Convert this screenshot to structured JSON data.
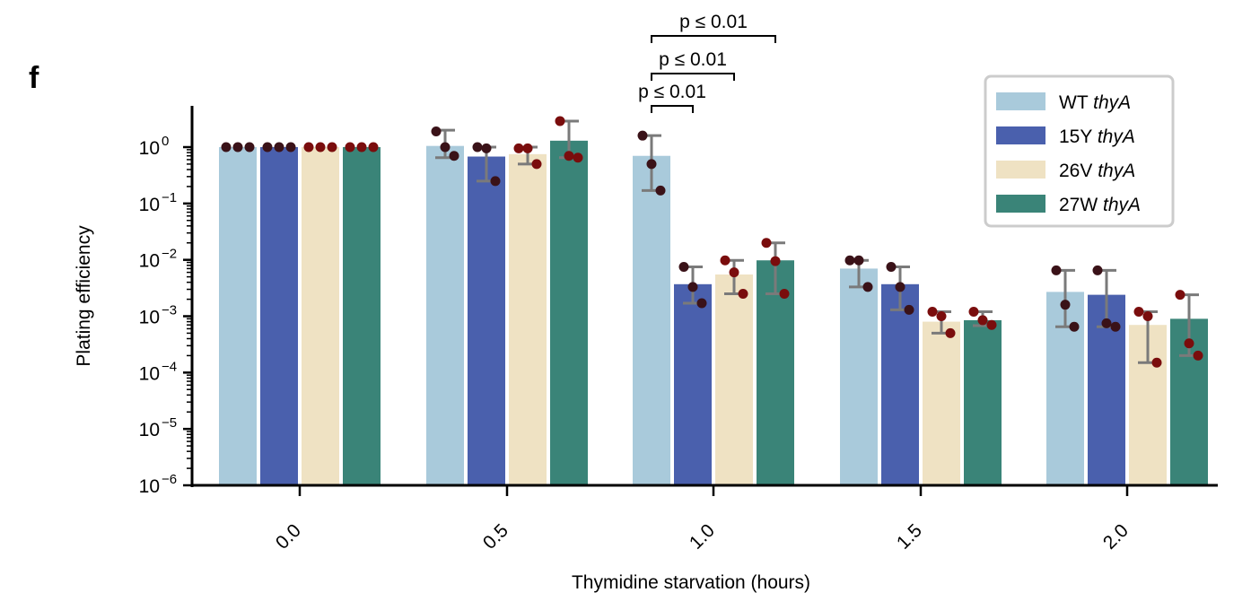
{
  "panel_label": "f",
  "chart_data": {
    "type": "bar",
    "xlabel": "Thymidine starvation (hours)",
    "ylabel": "Plating efficiency",
    "yscale": "log",
    "ylim": [
      1e-06,
      1
    ],
    "y_ticks": [
      {
        "value": 1,
        "base": "10",
        "exp": "0"
      },
      {
        "value": 0.1,
        "base": "10",
        "exp": "−1"
      },
      {
        "value": 0.01,
        "base": "10",
        "exp": "−2"
      },
      {
        "value": 0.001,
        "base": "10",
        "exp": "−3"
      },
      {
        "value": 0.0001,
        "base": "10",
        "exp": "−4"
      },
      {
        "value": 1e-05,
        "base": "10",
        "exp": "−5"
      },
      {
        "value": 1e-06,
        "base": "10",
        "exp": "−6"
      }
    ],
    "categories": [
      "0.0",
      "0.5",
      "1.0",
      "1.5",
      "2.0"
    ],
    "legend_position": "top-right",
    "series": [
      {
        "name_prefix": "WT",
        "name_italic": "thyA",
        "color": "#a9cadb",
        "values": [
          1,
          1.05,
          0.7,
          0.007,
          0.0027
        ],
        "error_low": [
          null,
          0.65,
          0.17,
          0.0033,
          0.00065
        ],
        "error_high": [
          null,
          2.0,
          1.6,
          0.0098,
          0.0065
        ],
        "points": [
          [
            1,
            1,
            1
          ],
          [
            1.9,
            1.0,
            0.7
          ],
          [
            1.6,
            0.5,
            0.17
          ],
          [
            0.0098,
            0.0098,
            0.0033
          ],
          [
            0.0065,
            0.0016,
            0.00065
          ]
        ],
        "point_color": "#3a1218"
      },
      {
        "name_prefix": "15Y",
        "name_italic": "thyA",
        "color": "#4a60ad",
        "values": [
          1,
          0.68,
          0.0037,
          0.0037,
          0.0024
        ],
        "error_low": [
          null,
          0.25,
          0.0017,
          0.0013,
          0.00065
        ],
        "error_high": [
          null,
          1.0,
          0.0075,
          0.0075,
          0.0065
        ],
        "points": [
          [
            1,
            1,
            1
          ],
          [
            1.0,
            0.95,
            0.25
          ],
          [
            0.0075,
            0.0033,
            0.0017
          ],
          [
            0.0075,
            0.0033,
            0.0013
          ],
          [
            0.0065,
            0.00075,
            0.00065
          ]
        ],
        "point_color": "#3a1218"
      },
      {
        "name_prefix": "26V",
        "name_italic": "thyA",
        "color": "#efe2c3",
        "values": [
          1,
          0.75,
          0.0055,
          0.0008,
          0.0007
        ],
        "error_low": [
          null,
          0.5,
          0.0025,
          0.0005,
          0.00015
        ],
        "error_high": [
          null,
          1.0,
          0.0098,
          0.0012,
          0.0012
        ],
        "points": [
          [
            1,
            1,
            1
          ],
          [
            0.95,
            0.95,
            0.5
          ],
          [
            0.0098,
            0.006,
            0.0025
          ],
          [
            0.0012,
            0.001,
            0.0005
          ],
          [
            0.0012,
            0.001,
            0.00015
          ]
        ],
        "point_color": "#7a0d0d"
      },
      {
        "name_prefix": "27W",
        "name_italic": "thyA",
        "color": "#3a8478",
        "values": [
          1,
          1.3,
          0.0098,
          0.00085,
          0.0009
        ],
        "error_low": [
          null,
          0.65,
          0.0025,
          0.00068,
          0.0002
        ],
        "error_high": [
          null,
          2.9,
          0.02,
          0.0012,
          0.0024
        ],
        "points": [
          [
            1,
            1,
            1
          ],
          [
            2.9,
            0.7,
            0.65
          ],
          [
            0.02,
            0.0095,
            0.0025
          ],
          [
            0.0012,
            0.00085,
            0.0007
          ],
          [
            0.0024,
            0.00033,
            0.0002
          ]
        ],
        "point_color": "#7a0d0d"
      }
    ],
    "annotations": [
      {
        "text": "p ≤ 0.01",
        "category": "1.0",
        "from_series": 0,
        "to_series": 3
      },
      {
        "text": "p ≤ 0.01",
        "category": "1.0",
        "from_series": 0,
        "to_series": 2
      },
      {
        "text": "p ≤ 0.01",
        "category": "1.0",
        "from_series": 0,
        "to_series": 1
      }
    ]
  }
}
